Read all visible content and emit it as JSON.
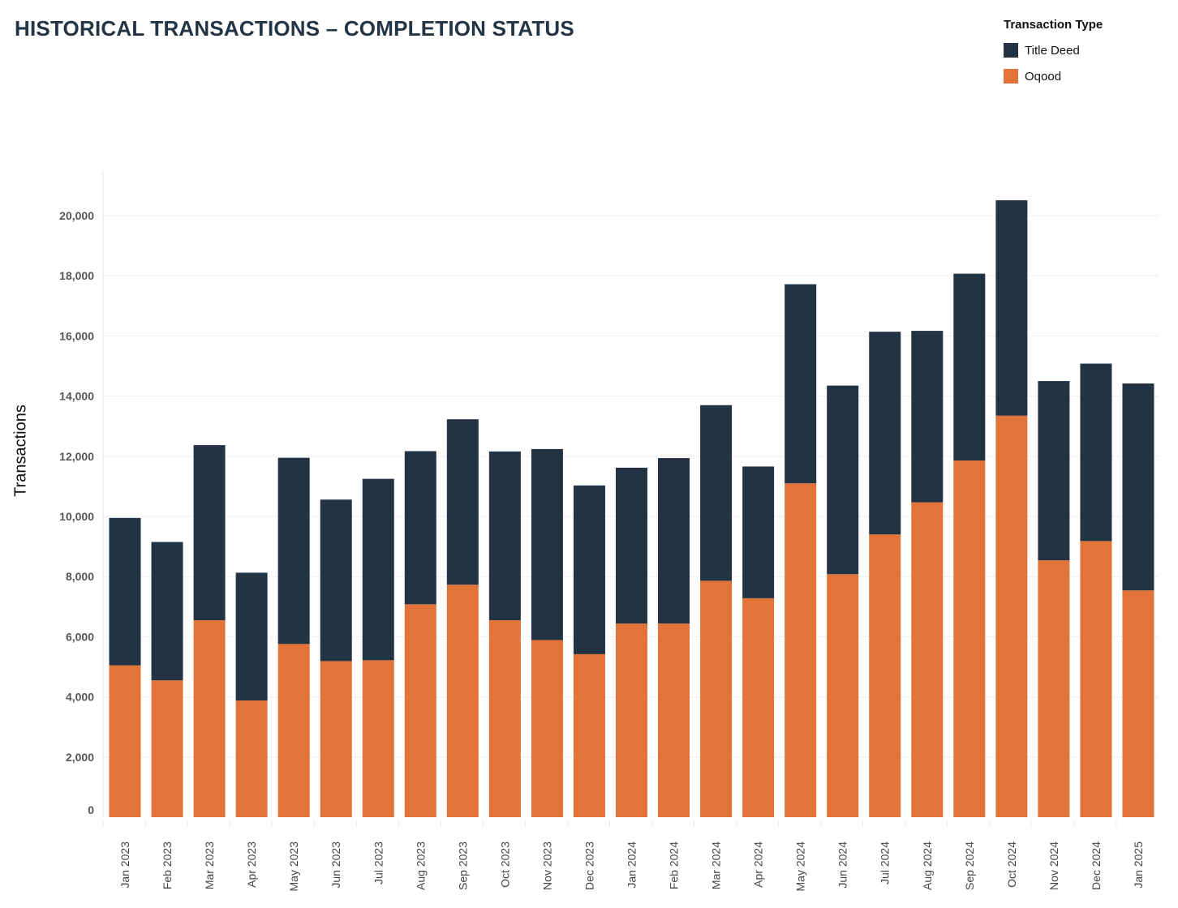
{
  "chart_data": {
    "type": "bar",
    "stacked": true,
    "title": "HISTORICAL TRANSACTIONS – COMPLETION STATUS",
    "ylabel": "Transactions",
    "xlabel": "",
    "ylim": [
      0,
      21500
    ],
    "yticks": [
      0,
      2000,
      4000,
      6000,
      8000,
      10000,
      12000,
      14000,
      16000,
      18000,
      20000
    ],
    "ytick_labels": [
      "0",
      "2,000",
      "4,000",
      "6,000",
      "8,000",
      "10,000",
      "12,000",
      "14,000",
      "16,000",
      "18,000",
      "20,000"
    ],
    "grid": true,
    "legend": {
      "title": "Transaction Type",
      "placement": "top-right"
    },
    "categories": [
      "Jan 2023",
      "Feb 2023",
      "Mar 2023",
      "Apr 2023",
      "May 2023",
      "Jun 2023",
      "Jul 2023",
      "Aug 2023",
      "Sep 2023",
      "Oct 2023",
      "Nov 2023",
      "Dec 2023",
      "Jan 2024",
      "Feb 2024",
      "Mar 2024",
      "Apr 2024",
      "May 2024",
      "Jun 2024",
      "Jul 2024",
      "Aug 2024",
      "Sep 2024",
      "Oct 2024",
      "Nov 2024",
      "Dec 2024",
      "Jan 2025"
    ],
    "series": [
      {
        "name": "Oqood",
        "color": "#e2743a",
        "values": [
          5050,
          4550,
          6550,
          3880,
          5760,
          5190,
          5220,
          7080,
          7730,
          6550,
          5890,
          5420,
          6440,
          6440,
          7860,
          7280,
          11100,
          8080,
          9400,
          10470,
          11860,
          13350,
          8540,
          9180,
          7540
        ]
      },
      {
        "name": "Title Deed",
        "color": "#223344",
        "values": [
          4900,
          4600,
          5820,
          4250,
          6190,
          5370,
          6030,
          5090,
          5500,
          5610,
          6350,
          5610,
          5180,
          5500,
          5840,
          4380,
          6620,
          6270,
          6740,
          5700,
          6210,
          7160,
          5960,
          5900,
          6880
        ]
      }
    ]
  }
}
